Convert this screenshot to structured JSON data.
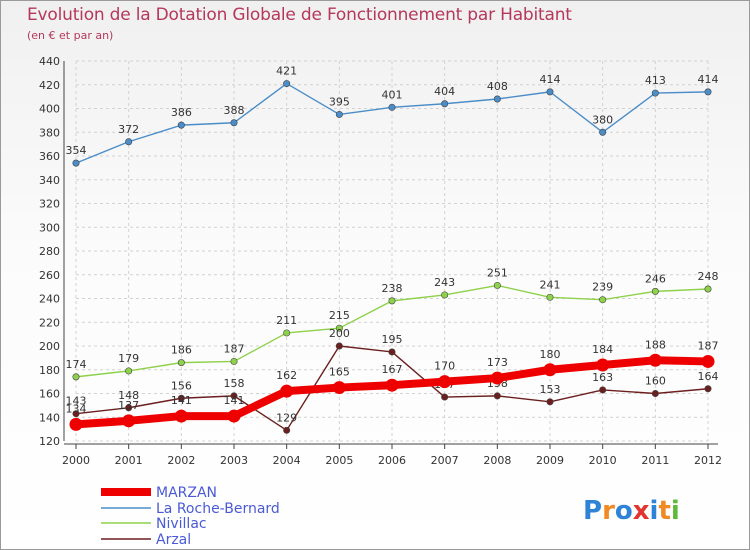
{
  "title": "Evolution de la Dotation Globale de Fonctionnement par Habitant",
  "subtitle": "(en € et par an)",
  "logo_text": "Proxiti",
  "chart_data": {
    "type": "line",
    "title": "Evolution de la Dotation Globale de Fonctionnement par Habitant",
    "subtitle": "(en € et par an)",
    "x": [
      2000,
      2001,
      2002,
      2003,
      2004,
      2005,
      2006,
      2007,
      2008,
      2009,
      2010,
      2011,
      2012
    ],
    "ylim": [
      120,
      440
    ],
    "yticks": [
      120,
      140,
      160,
      180,
      200,
      220,
      240,
      260,
      280,
      300,
      320,
      340,
      360,
      380,
      400,
      420,
      440
    ],
    "grid": true,
    "legend_position": "bottom-left",
    "series": [
      {
        "name": "MARZAN",
        "color": "#ee0000",
        "values": [
          134,
          137,
          141,
          141,
          162,
          165,
          167,
          170,
          173,
          180,
          184,
          188,
          187
        ]
      },
      {
        "name": "La Roche-Bernard",
        "color": "#4a8dc8",
        "values": [
          354,
          372,
          386,
          388,
          421,
          395,
          401,
          404,
          408,
          414,
          380,
          413,
          414
        ]
      },
      {
        "name": "Nivillac",
        "color": "#8ed14a",
        "values": [
          174,
          179,
          186,
          187,
          211,
          215,
          238,
          243,
          251,
          241,
          239,
          246,
          248
        ]
      },
      {
        "name": "Arzal",
        "color": "#6b1f1f",
        "values": [
          143,
          148,
          156,
          158,
          129,
          200,
          195,
          157,
          158,
          153,
          163,
          160,
          164
        ]
      }
    ]
  }
}
